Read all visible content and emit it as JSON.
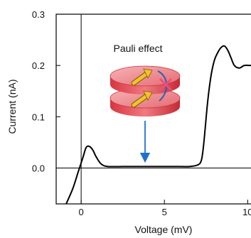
{
  "chart_data": {
    "type": "line",
    "title": "",
    "xlabel": "Voltage (mV)",
    "ylabel": "Current (nA)",
    "xlim": [
      -1.5,
      10.2
    ],
    "ylim": [
      -0.07,
      0.3
    ],
    "xticks": [
      {
        "value": 0,
        "label": "0"
      },
      {
        "value": 5,
        "label": "5"
      },
      {
        "value": 10,
        "label": "10"
      }
    ],
    "yticks": [
      {
        "value": 0.0,
        "label": "0.0"
      },
      {
        "value": 0.1,
        "label": "0.1"
      },
      {
        "value": 0.2,
        "label": "0.2"
      },
      {
        "value": 0.3,
        "label": "0.3"
      }
    ],
    "reference_lines": {
      "x": 0,
      "y": 0
    },
    "series": [
      {
        "color": "#000000",
        "x": [
          -0.9,
          -0.5,
          -0.2,
          0.1,
          0.3,
          0.5,
          0.7,
          0.9,
          1.2,
          1.6,
          2.5,
          4.0,
          5.5,
          6.5,
          7.0,
          7.2,
          7.3,
          7.4,
          7.6,
          7.8,
          8.0,
          8.2,
          8.4,
          8.6,
          8.8,
          9.0,
          9.2,
          9.5,
          9.8,
          10.2
        ],
        "y": [
          -0.07,
          -0.04,
          -0.01,
          0.02,
          0.04,
          0.042,
          0.035,
          0.022,
          0.008,
          0.003,
          0.003,
          0.003,
          0.003,
          0.003,
          0.006,
          0.013,
          0.03,
          0.06,
          0.13,
          0.18,
          0.21,
          0.225,
          0.235,
          0.238,
          0.23,
          0.215,
          0.2,
          0.195,
          0.2,
          0.2
        ]
      }
    ],
    "grid": false,
    "legend": "none",
    "annotation": {
      "text": "Pauli effect",
      "arrow_color": "#1f6fd1",
      "disk_color": "#e0404a",
      "spin_arrow_color": "#f2c230",
      "cross_color": "#e8507a"
    }
  }
}
